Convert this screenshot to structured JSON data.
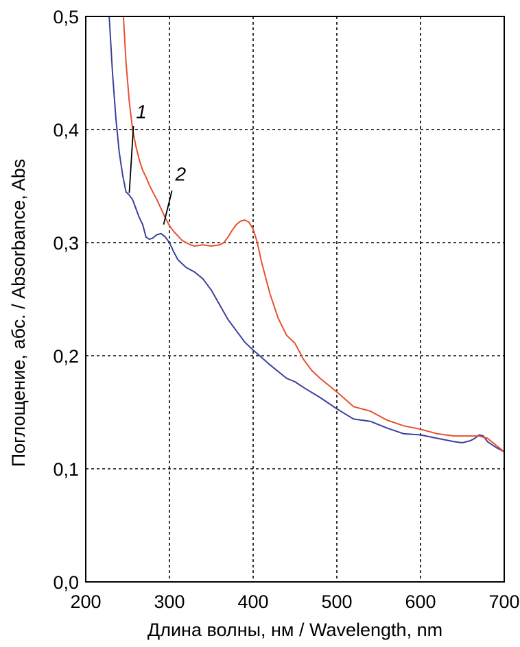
{
  "chart_data": {
    "type": "line",
    "xlabel": "Длина волны, нм / Wavelength, nm",
    "ylabel": "Поглощение, абс. / Absorbance, Abs",
    "xlim": [
      200,
      700
    ],
    "ylim": [
      0,
      0.5
    ],
    "xticks": [
      "200",
      "300",
      "400",
      "500",
      "600",
      "700"
    ],
    "yticks": [
      "0,0",
      "0,1",
      "0,2",
      "0,3",
      "0,4",
      "0,5"
    ],
    "grid": true,
    "series": [
      {
        "name": "1",
        "color": "#3b3f9e",
        "x": [
          228,
          232,
          236,
          240,
          244,
          248,
          252,
          256,
          260,
          264,
          268,
          272,
          276,
          280,
          285,
          290,
          295,
          300,
          305,
          310,
          320,
          330,
          340,
          350,
          360,
          370,
          380,
          390,
          400,
          420,
          440,
          450,
          460,
          480,
          500,
          520,
          540,
          560,
          580,
          600,
          620,
          640,
          650,
          660,
          665,
          670,
          675,
          680,
          690,
          700
        ],
        "y": [
          0.5,
          0.45,
          0.41,
          0.38,
          0.36,
          0.345,
          0.342,
          0.338,
          0.33,
          0.322,
          0.316,
          0.305,
          0.303,
          0.304,
          0.307,
          0.308,
          0.305,
          0.3,
          0.292,
          0.285,
          0.278,
          0.274,
          0.268,
          0.258,
          0.245,
          0.232,
          0.222,
          0.212,
          0.205,
          0.192,
          0.18,
          0.177,
          0.172,
          0.163,
          0.153,
          0.144,
          0.142,
          0.136,
          0.131,
          0.13,
          0.127,
          0.124,
          0.123,
          0.125,
          0.127,
          0.13,
          0.129,
          0.124,
          0.119,
          0.115
        ]
      },
      {
        "name": "2",
        "color": "#e8502e",
        "x": [
          245,
          248,
          252,
          256,
          260,
          264,
          268,
          272,
          276,
          280,
          285,
          290,
          295,
          300,
          305,
          310,
          315,
          320,
          325,
          330,
          340,
          350,
          360,
          365,
          370,
          375,
          380,
          385,
          390,
          395,
          400,
          405,
          410,
          420,
          430,
          440,
          450,
          460,
          470,
          480,
          500,
          520,
          540,
          560,
          580,
          600,
          620,
          640,
          660,
          670,
          680,
          690,
          700
        ],
        "y": [
          0.5,
          0.46,
          0.425,
          0.4,
          0.385,
          0.373,
          0.364,
          0.358,
          0.351,
          0.345,
          0.338,
          0.33,
          0.322,
          0.315,
          0.31,
          0.306,
          0.302,
          0.3,
          0.298,
          0.297,
          0.298,
          0.297,
          0.298,
          0.3,
          0.305,
          0.311,
          0.316,
          0.319,
          0.32,
          0.318,
          0.312,
          0.3,
          0.283,
          0.255,
          0.233,
          0.218,
          0.211,
          0.197,
          0.187,
          0.18,
          0.168,
          0.155,
          0.151,
          0.143,
          0.138,
          0.135,
          0.131,
          0.129,
          0.129,
          0.129,
          0.127,
          0.121,
          0.115
        ]
      }
    ],
    "annotations": [
      {
        "text": "1",
        "x": 260,
        "y": 0.41,
        "leader_from": [
          257,
          0.403
        ],
        "leader_to": [
          252,
          0.344
        ]
      },
      {
        "text": "2",
        "x": 307,
        "y": 0.355,
        "leader_from": [
          303,
          0.346
        ],
        "leader_to": [
          293,
          0.316
        ]
      }
    ]
  }
}
